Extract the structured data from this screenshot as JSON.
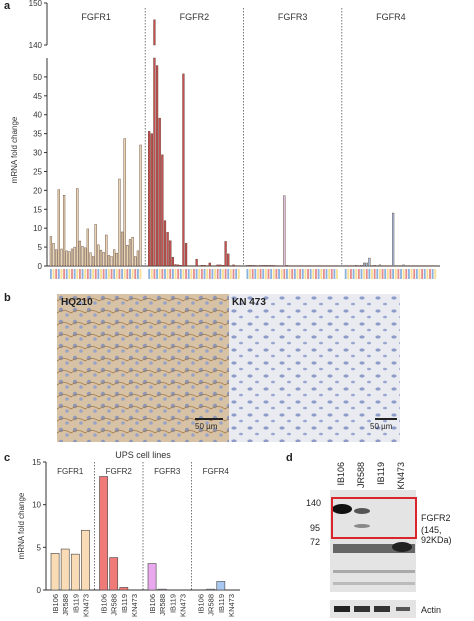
{
  "panels": {
    "a": "a",
    "b": "b",
    "c": "c",
    "d": "d"
  },
  "chart_data": [
    {
      "type": "bar",
      "panel": "a",
      "ylabel": "mRNA fold change",
      "ylim_lower": [
        0,
        55
      ],
      "ylim_upper": [
        140,
        150
      ],
      "yticks_lower": [
        "0",
        "5",
        "10",
        "15",
        "20",
        "25",
        "30",
        "35",
        "40",
        "45",
        "50"
      ],
      "yticks_upper": [
        "140",
        "150"
      ],
      "groups": [
        {
          "name": "FGFR1",
          "color": "#e8d5b5",
          "values": [
            7.8,
            6,
            4.3,
            20.2,
            4.5,
            18.7,
            4,
            3.8,
            4.5,
            5,
            20.5,
            6.6,
            5.2,
            4.8,
            9.8,
            3.5,
            2.5,
            11,
            5.6,
            4.2,
            3.6,
            8.2,
            2.8,
            2.5,
            4.3,
            3.4,
            23,
            9,
            33.7,
            5.5,
            7,
            7.6,
            2.5,
            4,
            32
          ]
        },
        {
          "name": "FGFR2",
          "color": "#c94f52",
          "values": [
            35.6,
            35,
            146,
            53,
            39.1,
            29.4,
            12,
            8.9,
            6.7,
            2.3,
            0.4,
            0.3,
            0.2,
            50.8,
            6,
            0.1,
            0.1,
            0.1,
            1.8,
            0.1,
            0.2,
            0.2,
            0.1,
            0.8,
            0.1,
            0.1,
            0.3,
            0.3,
            0.2,
            6.5,
            3.2,
            0.1,
            0.3,
            0.1,
            0.1
          ]
        },
        {
          "name": "FGFR3",
          "color": "#d9bfe0",
          "values": [
            0.2,
            0.2,
            0.2,
            0.2,
            0.1,
            0.2,
            0.2,
            0.2,
            0.2,
            0.2,
            0.2,
            0.1,
            0.1,
            0.1,
            18.6,
            0.2,
            0.1,
            0.1,
            0.1,
            0.1,
            0.1,
            0.1,
            0.1,
            0.1,
            0.1,
            0.1,
            0.1,
            0.1,
            0.1,
            0.1,
            0.1,
            0.1,
            0.1,
            0.1,
            0.1
          ]
        },
        {
          "name": "FGFR4",
          "color": "#a9c3e8",
          "values": [
            0.1,
            0.1,
            0.1,
            0.1,
            0.2,
            0.1,
            0.2,
            0.8,
            0.8,
            2.1,
            0.1,
            0.2,
            0.1,
            0.3,
            0.1,
            0.1,
            0.1,
            0.1,
            14,
            0.1,
            0.1,
            0.1,
            0.3,
            0.1,
            0.1,
            0.1,
            0.1,
            0.1,
            0.1,
            0.1,
            0.1,
            0.1,
            0.1,
            0.1,
            0.1
          ]
        }
      ]
    },
    {
      "type": "bar",
      "panel": "c",
      "title": "UPS cell lines",
      "ylabel": "mRNA fold change",
      "ylim": [
        0,
        15
      ],
      "yticks": [
        "0",
        "5",
        "10",
        "15"
      ],
      "categories": [
        "IB106",
        "JR588",
        "IB119",
        "KN473"
      ],
      "groups": [
        {
          "name": "FGFR1",
          "color": "#f9dcb5",
          "values": [
            4.3,
            4.8,
            4.2,
            7
          ]
        },
        {
          "name": "FGFR2",
          "color": "#f07a78",
          "values": [
            13.3,
            3.8,
            0.3,
            0
          ]
        },
        {
          "name": "FGFR3",
          "color": "#e9a8ee",
          "values": [
            3.1,
            0.1,
            0,
            0
          ]
        },
        {
          "name": "FGFR4",
          "color": "#a8c8f0",
          "values": [
            0,
            0.1,
            1,
            0
          ]
        }
      ]
    }
  ],
  "ihc": {
    "left_label": "HQ210",
    "right_label": "KN 473",
    "left_scale": "50 µm",
    "right_scale": "50 µm"
  },
  "western": {
    "lanes": [
      "IB106",
      "JR588",
      "IB119",
      "KN473"
    ],
    "markers": [
      "140",
      "95",
      "72"
    ],
    "fgfr2_label": "FGFR2",
    "fgfr2_sub": "(145, 92KDa)",
    "actin_label": "Actin"
  }
}
